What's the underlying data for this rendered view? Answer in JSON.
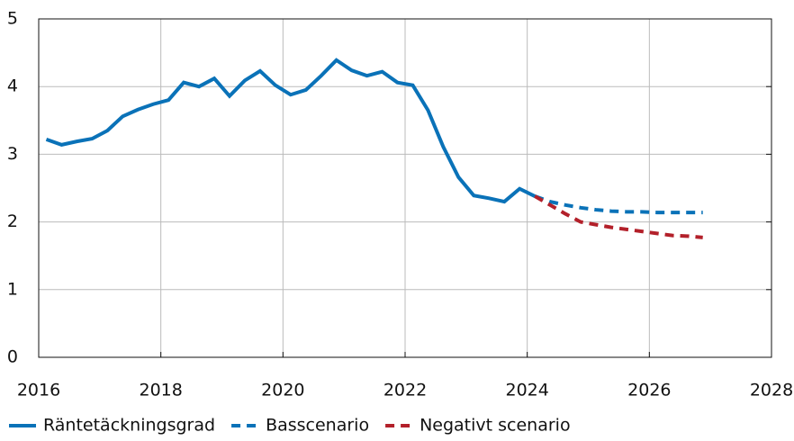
{
  "chart_data": {
    "type": "line",
    "xlim": [
      2016,
      2028
    ],
    "xticks": [
      2016,
      2018,
      2020,
      2022,
      2024,
      2026,
      2028
    ],
    "ylim": [
      0,
      5
    ],
    "yticks": [
      0,
      1,
      2,
      3,
      4,
      5
    ],
    "grid": true,
    "legend": "bottom",
    "series": [
      {
        "name": "Räntetäckningsgrad",
        "color": "#0a72b8",
        "dash": "solid",
        "x": [
          2016.125,
          2016.375,
          2016.625,
          2016.875,
          2017.125,
          2017.375,
          2017.625,
          2017.875,
          2018.125,
          2018.375,
          2018.625,
          2018.875,
          2019.125,
          2019.375,
          2019.625,
          2019.875,
          2020.125,
          2020.375,
          2020.625,
          2020.875,
          2021.125,
          2021.375,
          2021.625,
          2021.875,
          2022.125,
          2022.375,
          2022.625,
          2022.875,
          2023.125,
          2023.375,
          2023.625,
          2023.875,
          2024.125
        ],
        "values": [
          3.22,
          3.14,
          3.19,
          3.23,
          3.35,
          3.56,
          3.66,
          3.74,
          3.8,
          4.06,
          4.0,
          4.12,
          3.86,
          4.09,
          4.23,
          4.02,
          3.88,
          3.95,
          4.16,
          4.39,
          4.24,
          4.16,
          4.22,
          4.06,
          4.02,
          3.65,
          3.11,
          2.66,
          2.39,
          2.35,
          2.3,
          2.49,
          2.38
        ]
      },
      {
        "name": "Basscenario",
        "color": "#0a72b8",
        "dash": "dashed",
        "x": [
          2024.125,
          2024.375,
          2024.625,
          2024.875,
          2025.125,
          2025.375,
          2025.625,
          2025.875,
          2026.125,
          2026.375,
          2026.625,
          2026.875
        ],
        "values": [
          2.38,
          2.3,
          2.25,
          2.21,
          2.18,
          2.16,
          2.15,
          2.15,
          2.14,
          2.14,
          2.14,
          2.14
        ]
      },
      {
        "name": "Negativt scenario",
        "color": "#b3202a",
        "dash": "dashed",
        "x": [
          2024.125,
          2024.375,
          2024.625,
          2024.875,
          2025.125,
          2025.375,
          2025.625,
          2025.875,
          2026.125,
          2026.375,
          2026.625,
          2026.875
        ],
        "values": [
          2.38,
          2.25,
          2.12,
          2.0,
          1.96,
          1.92,
          1.89,
          1.86,
          1.83,
          1.8,
          1.79,
          1.77
        ]
      }
    ]
  }
}
